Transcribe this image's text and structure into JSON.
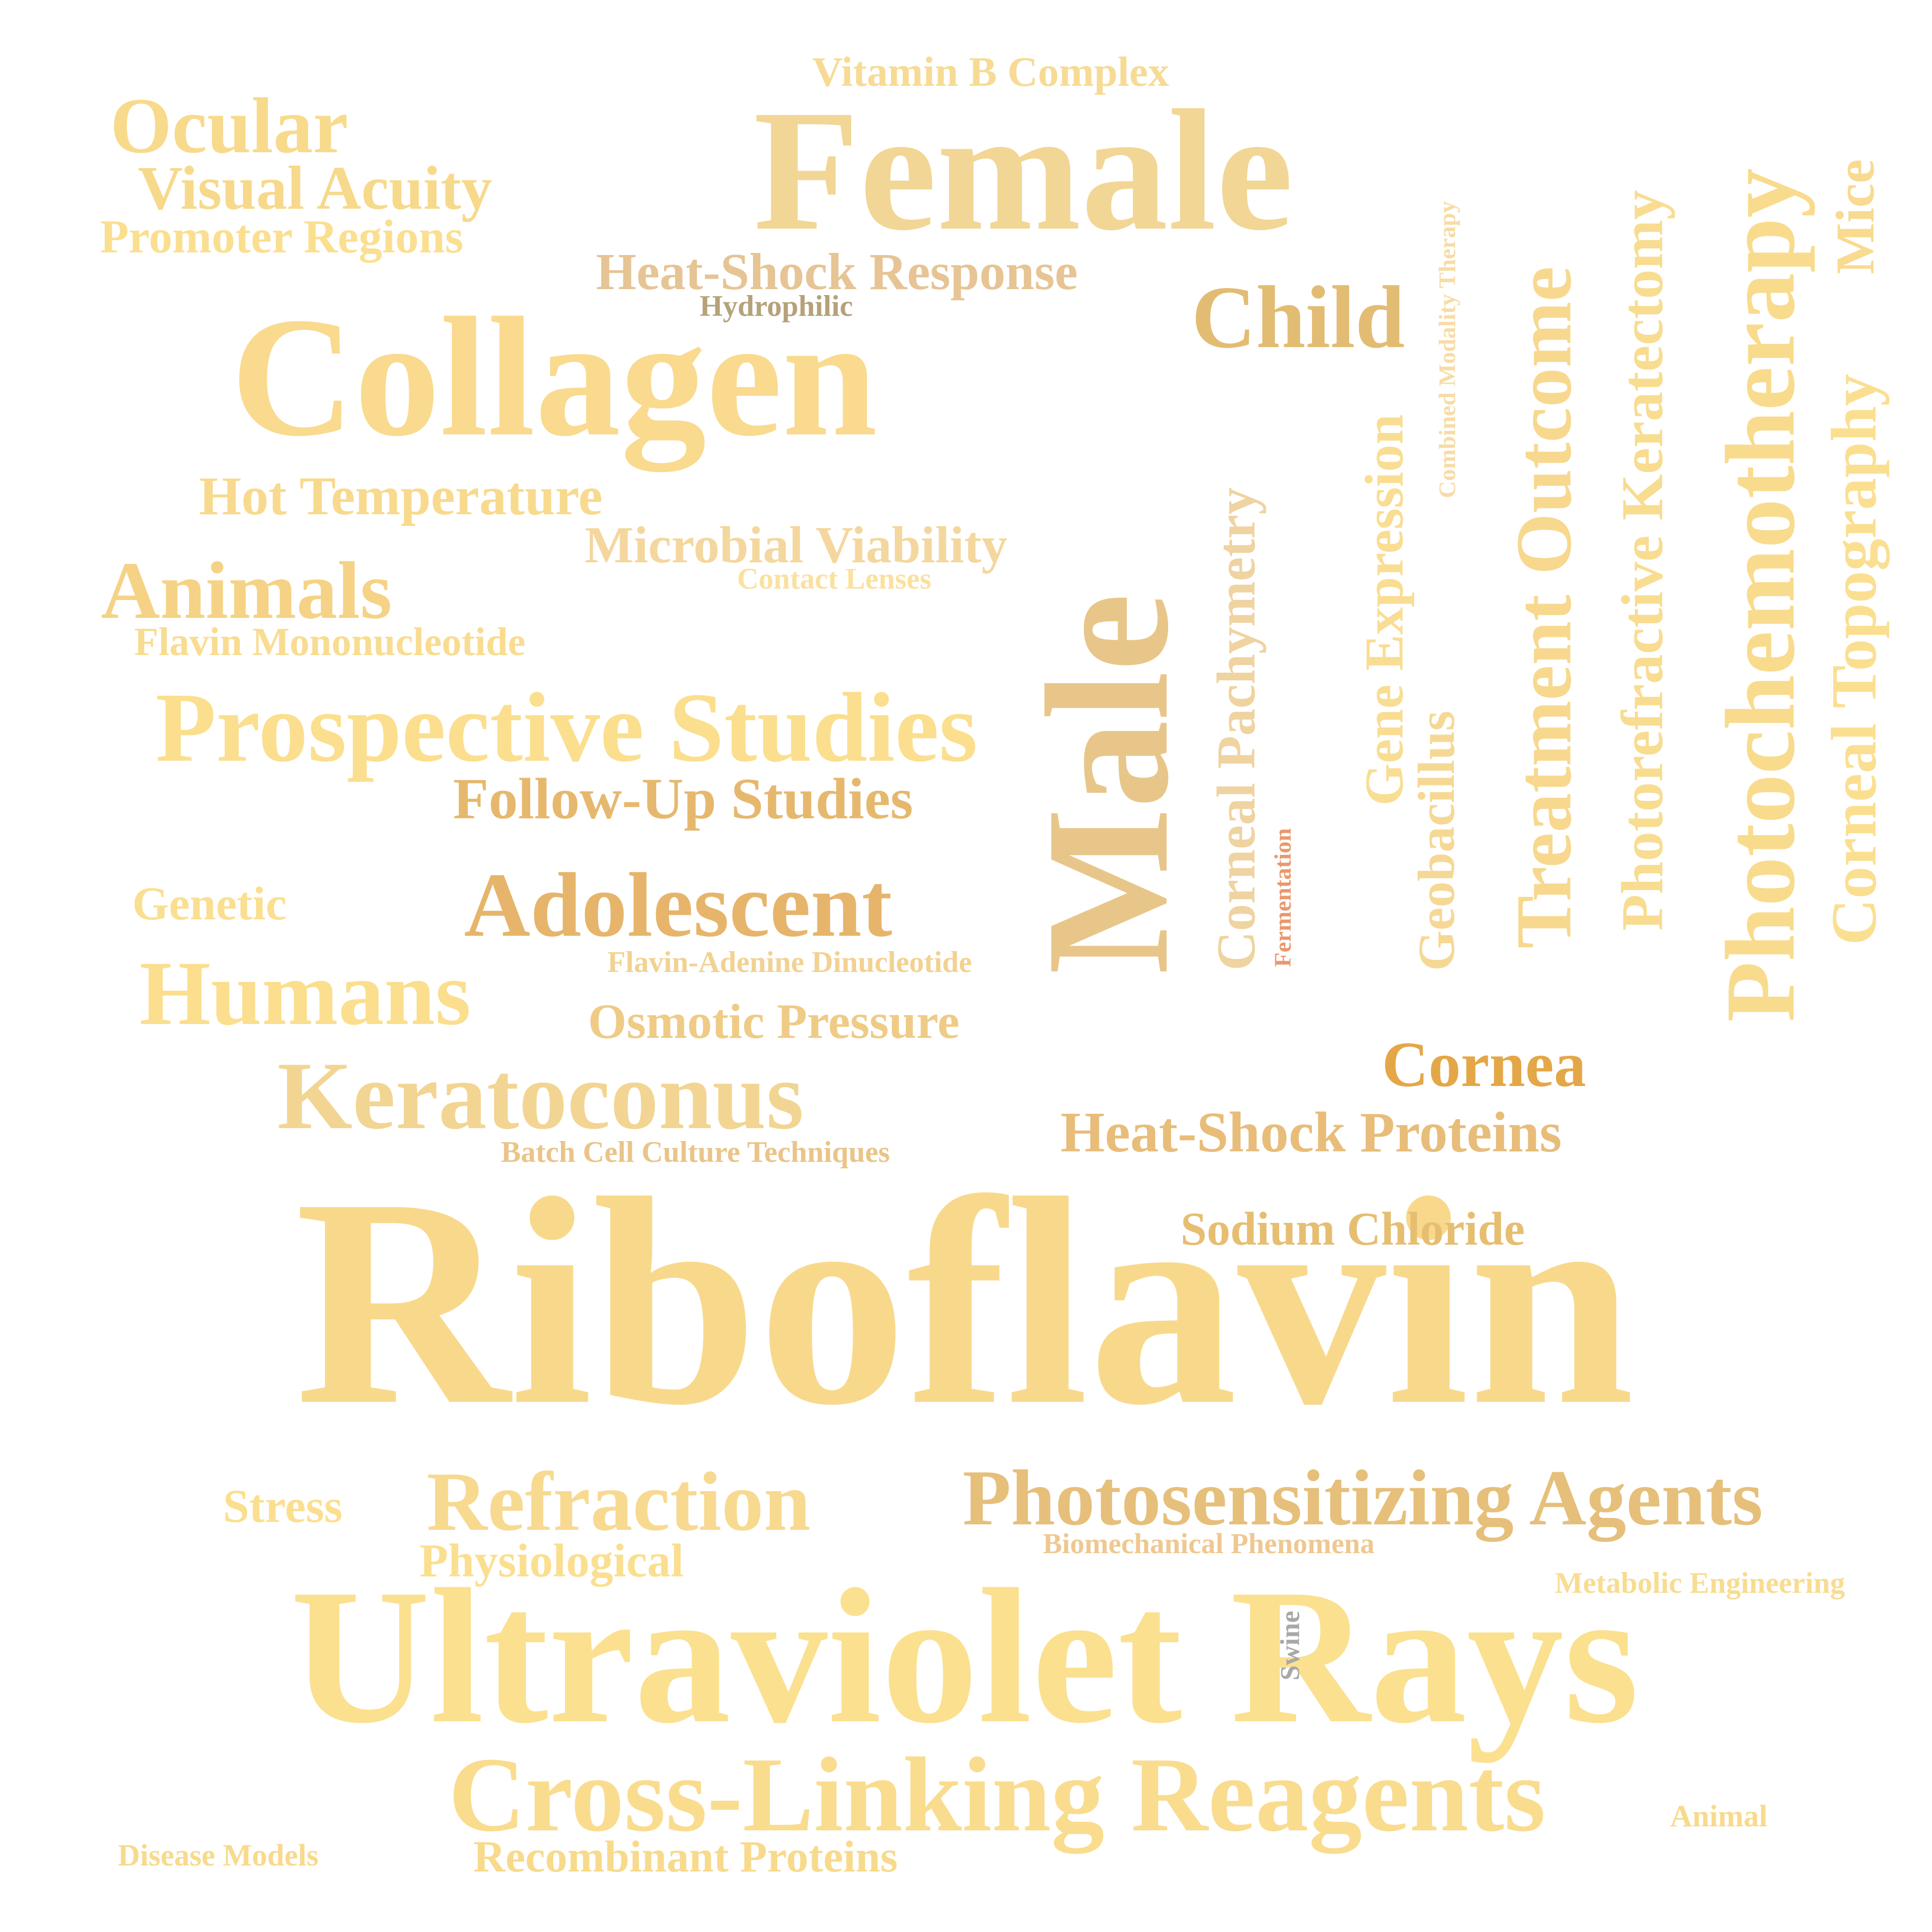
{
  "words": [
    {
      "id": "riboflavin",
      "text": "Riboflavin",
      "color": "#F8D98C"
    },
    {
      "id": "ultraviolet-rays",
      "text": "Ultraviolet Rays",
      "color": "#FBE08F"
    },
    {
      "id": "collagen",
      "text": "Collagen",
      "color": "#F9DA8E"
    },
    {
      "id": "female",
      "text": "Female",
      "color": "#F2D695"
    },
    {
      "id": "male",
      "text": "Male",
      "color": "#E8C68A"
    },
    {
      "id": "cross-linking-reagents",
      "text": "Cross-Linking Reagents",
      "color": "#F9DC8E"
    },
    {
      "id": "photochemotherapy",
      "text": "Photochemotherapy",
      "color": "#F8DB8C"
    },
    {
      "id": "prospective-studies",
      "text": "Prospective Studies",
      "color": "#FBDF8E"
    },
    {
      "id": "keratoconus",
      "text": "Keratoconus",
      "color": "#F2D592"
    },
    {
      "id": "photosensitizing-agents",
      "text": "Photosensitizing Agents",
      "color": "#E6BF7A"
    },
    {
      "id": "refraction",
      "text": "Refraction",
      "color": "#F7D990"
    },
    {
      "id": "humans",
      "text": "Humans",
      "color": "#FBDE8E"
    },
    {
      "id": "adolescent",
      "text": "Adolescent",
      "color": "#E6B56B"
    },
    {
      "id": "animals",
      "text": "Animals",
      "color": "#F5D285"
    },
    {
      "id": "ocular",
      "text": "Ocular",
      "color": "#F8DA8C"
    },
    {
      "id": "visual-acuity",
      "text": "Visual Acuity",
      "color": "#F7D98C"
    },
    {
      "id": "child",
      "text": "Child",
      "color": "#E3BC74"
    },
    {
      "id": "treatment-outcome",
      "text": "Treatment Outcome",
      "color": "#F7D88E"
    },
    {
      "id": "corneal-topography",
      "text": "Corneal Topography",
      "color": "#FBDF91"
    },
    {
      "id": "photorefractive-keratectomy",
      "text": "Photorefractive Keratectomy",
      "color": "#F8DC90"
    },
    {
      "id": "corneal-pachymetry",
      "text": "Corneal Pachymetry",
      "color": "#EFD3A0"
    },
    {
      "id": "gene-expression",
      "text": "Gene Expression",
      "color": "#F9DD92"
    },
    {
      "id": "geobacillus",
      "text": "Geobacillus",
      "color": "#F6D895"
    },
    {
      "id": "mice",
      "text": "Mice",
      "color": "#F8DA90"
    },
    {
      "id": "heat-shock-proteins",
      "text": "Heat-Shock Proteins",
      "color": "#E8BD7A"
    },
    {
      "id": "cornea",
      "text": "Cornea",
      "color": "#E4A748"
    },
    {
      "id": "follow-up-studies",
      "text": "Follow-Up Studies",
      "color": "#E6B86E"
    },
    {
      "id": "heat-shock-response",
      "text": "Heat-Shock Response",
      "color": "#E6C494"
    },
    {
      "id": "hot-temperature",
      "text": "Hot Temperature",
      "color": "#F8DA8E"
    },
    {
      "id": "microbial-viability",
      "text": "Microbial Viability",
      "color": "#F4D79E"
    },
    {
      "id": "osmotic-pressure",
      "text": "Osmotic Pressure",
      "color": "#EFCB86"
    },
    {
      "id": "vitamin-b-complex",
      "text": "Vitamin B Complex",
      "color": "#F7DB95"
    },
    {
      "id": "promoter-regions",
      "text": "Promoter Regions",
      "color": "#FBDF90"
    },
    {
      "id": "flavin-mononucleotide",
      "text": "Flavin Mononucleotide",
      "color": "#F8DC90"
    },
    {
      "id": "sodium-chloride",
      "text": "Sodium Chloride",
      "color": "#E6BE72"
    },
    {
      "id": "recombinant-proteins",
      "text": "Recombinant Proteins",
      "color": "#F8DA8C"
    },
    {
      "id": "physiological",
      "text": "Physiological",
      "color": "#FBDF90"
    },
    {
      "id": "genetic",
      "text": "Genetic",
      "color": "#FBDF90"
    },
    {
      "id": "stress",
      "text": "Stress",
      "color": "#FBDF90"
    },
    {
      "id": "hydrophilic",
      "text": "Hydrophilic",
      "color": "#B5A27A"
    },
    {
      "id": "contact-lenses",
      "text": "Contact Lenses",
      "color": "#FBE1A0"
    },
    {
      "id": "flavin-adenine-dinucleotide",
      "text": "Flavin-Adenine Dinucleotide",
      "color": "#F2D292"
    },
    {
      "id": "batch-cell-culture-techniques",
      "text": "Batch Cell Culture Techniques",
      "color": "#EAC488"
    },
    {
      "id": "biomechanical-phenomena",
      "text": "Biomechanical Phenomena",
      "color": "#EFC890"
    },
    {
      "id": "metabolic-engineering",
      "text": "Metabolic Engineering",
      "color": "#F8DC90"
    },
    {
      "id": "combined-modality-therapy",
      "text": "Combined Modality Therapy",
      "color": "#F7DCA6"
    },
    {
      "id": "fermentation",
      "text": "Fermentation",
      "color": "#E9996D"
    },
    {
      "id": "swine",
      "text": "Swine",
      "color": "#A8A8A8"
    },
    {
      "id": "animal",
      "text": "Animal",
      "color": "#F8DA8C"
    },
    {
      "id": "disease-models",
      "text": "Disease Models",
      "color": "#F8DA8C"
    }
  ]
}
